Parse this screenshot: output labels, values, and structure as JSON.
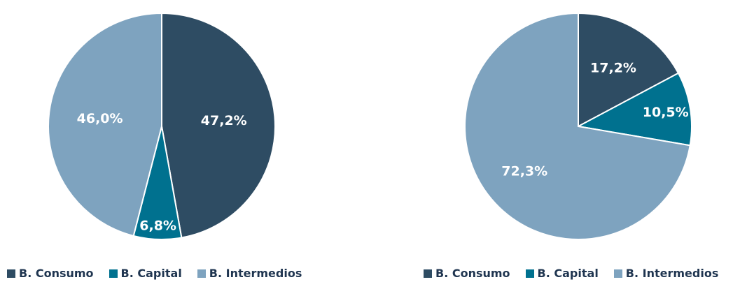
{
  "chart_data": [
    {
      "type": "pie",
      "categories": [
        "B. Consumo",
        "B. Capital",
        "B. Intermedios"
      ],
      "values": [
        47.2,
        6.8,
        46.0
      ],
      "data_labels": [
        "47,2%",
        "6,8%",
        "46,0%"
      ],
      "colors": [
        "#2e4c63",
        "#00718f",
        "#7ea3bf"
      ],
      "legend": [
        "B. Consumo",
        "B. Capital",
        "B. Intermedios"
      ],
      "legend_position": "bottom"
    },
    {
      "type": "pie",
      "categories": [
        "B. Consumo",
        "B. Capital",
        "B. Intermedios"
      ],
      "values": [
        17.2,
        10.5,
        72.3
      ],
      "data_labels": [
        "17,2%",
        "10,5%",
        "72,3%"
      ],
      "colors": [
        "#2e4c63",
        "#00718f",
        "#7ea3bf"
      ],
      "legend": [
        "B. Consumo",
        "B. Capital",
        "B. Intermedios"
      ],
      "legend_position": "bottom"
    }
  ]
}
